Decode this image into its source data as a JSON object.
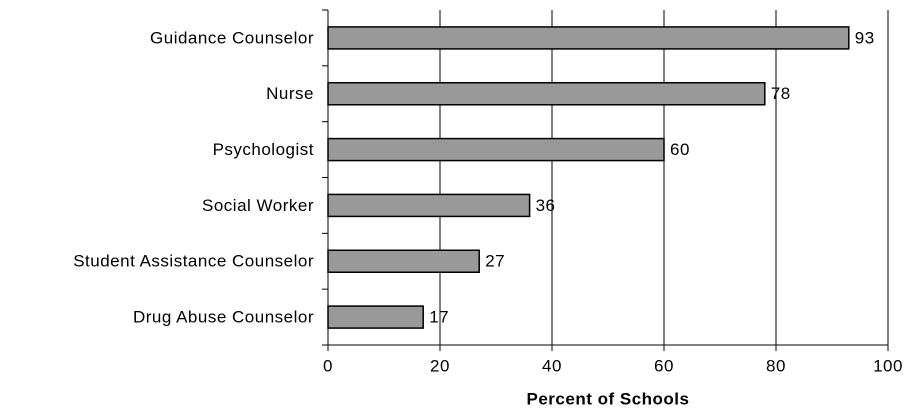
{
  "chart_data": {
    "type": "bar",
    "orientation": "horizontal",
    "categories": [
      "Guidance Counselor",
      "Nurse",
      "Psychologist",
      "Social Worker",
      "Student Assistance Counselor",
      "Drug Abuse Counselor"
    ],
    "values": [
      93,
      78,
      60,
      36,
      27,
      17
    ],
    "color": "#999999",
    "xlabel": "Percent of Schools",
    "xlim": [
      0,
      100
    ],
    "xticks": [
      0,
      20,
      40,
      60,
      80,
      100
    ],
    "grid": true
  }
}
